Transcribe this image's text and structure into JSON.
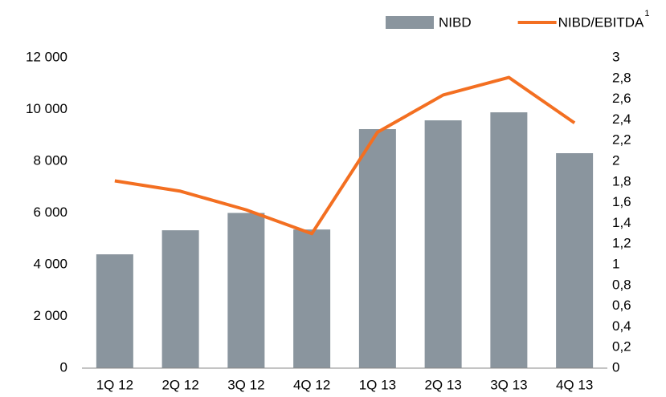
{
  "chart_data": {
    "type": "bar_line",
    "categories": [
      "1Q 12",
      "2Q 12",
      "3Q 12",
      "4Q 12",
      "1Q 13",
      "2Q 13",
      "3Q 13",
      "4Q 13"
    ],
    "series": [
      {
        "name": "NIBD",
        "type": "bar",
        "color": "#8a959e",
        "values": [
          4400,
          5330,
          6000,
          5360,
          9240,
          9580,
          9890,
          8310
        ]
      },
      {
        "name": "NIBD/EBITDA",
        "footnote_marker": "1",
        "type": "line",
        "axis": "y2",
        "color": "#f36f21",
        "values": [
          1.81,
          1.71,
          1.53,
          1.3,
          2.28,
          2.64,
          2.81,
          2.37
        ]
      }
    ],
    "ylim": [
      0,
      12000
    ],
    "yticks": [
      0,
      {
        "value": 2000,
        "label": "2 000"
      },
      {
        "value": 4000,
        "label": "4 000"
      },
      {
        "value": 6000,
        "label": "6 000"
      },
      {
        "value": 8000,
        "label": "8 000"
      },
      {
        "value": 10000,
        "label": "10 000"
      },
      {
        "value": 12000,
        "label": "12 000"
      }
    ],
    "y2lim": [
      0,
      3
    ],
    "y2ticks": [
      0,
      {
        "value": 0.2,
        "label": "0,2"
      },
      {
        "value": 0.4,
        "label": "0,4"
      },
      {
        "value": 0.6,
        "label": "0,6"
      },
      {
        "value": 0.8,
        "label": "0,8"
      },
      1,
      {
        "value": 1.2,
        "label": "1,2"
      },
      {
        "value": 1.4,
        "label": "1,4"
      },
      {
        "value": 1.6,
        "label": "1,6"
      },
      {
        "value": 1.8,
        "label": "1,8"
      },
      2,
      {
        "value": 2.2,
        "label": "2,2"
      },
      {
        "value": 2.4,
        "label": "2,4"
      },
      {
        "value": 2.6,
        "label": "2,6"
      },
      {
        "value": 2.8,
        "label": "2,8"
      },
      3
    ],
    "legend": "top-right",
    "grid": false
  }
}
